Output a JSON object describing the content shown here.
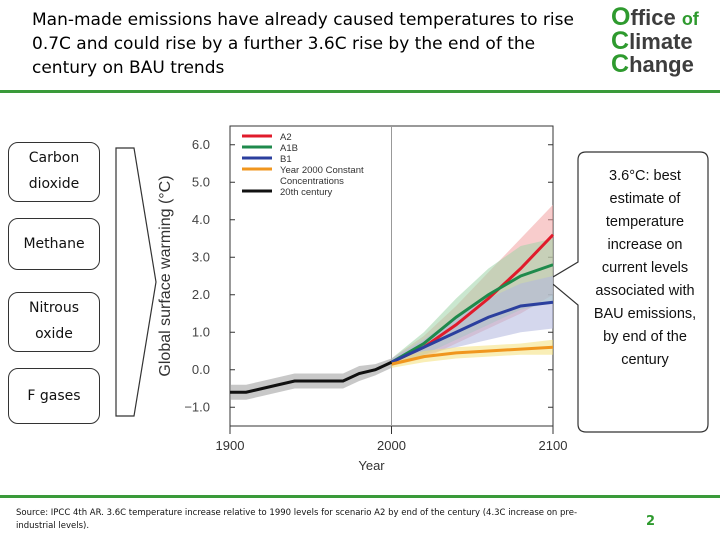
{
  "slide": {
    "title": "Man-made emissions have already caused temperatures to rise 0.7C and could rise by a further 3.6C rise by the end of the century on BAU trends",
    "logo": [
      "Office of",
      "Climate",
      "Change"
    ],
    "page_number": "2",
    "source_note": "Source: IPCC 4th AR. 3.6C temperature increase relative to 1990 levels for scenario A2 by end of the century (4.3C increase on pre-industrial levels).",
    "gases": [
      "Carbon dioxide",
      "Methane",
      "Nitrous oxide",
      "F gases"
    ],
    "callout": "3.6°C: best estimate of temperature increase on current levels associated with BAU emissions, by end of the century",
    "colors": {
      "green": "#2e9a2e",
      "logo_grey": "#3d3d3d"
    }
  },
  "chart_data": {
    "type": "line",
    "title": "",
    "xlabel": "Year",
    "ylabel": "Global surface warming (°C)",
    "xlim": [
      1900,
      2100
    ],
    "ylim": [
      -1.5,
      6.5
    ],
    "xticks": [
      1900,
      2000,
      2100
    ],
    "yticks": [
      6.0,
      5.0,
      4.0,
      3.0,
      2.0,
      1.0,
      0.0,
      -1.0
    ],
    "ytick_labels": [
      "6.0",
      "5.0",
      "4.0",
      "3.0",
      "2.0",
      "1.0",
      "0.0",
      "−1.0"
    ],
    "vline_x": 2000,
    "series": [
      {
        "name": "A2",
        "color": "#e01b2b",
        "band_color": "#f2a3a3",
        "x": [
          2000,
          2020,
          2040,
          2060,
          2080,
          2100
        ],
        "values": [
          0.2,
          0.6,
          1.2,
          1.9,
          2.7,
          3.6
        ],
        "band_low": [
          0.1,
          0.3,
          0.7,
          1.1,
          1.5,
          2.0
        ],
        "band_high": [
          0.3,
          0.9,
          1.7,
          2.6,
          3.5,
          4.4
        ]
      },
      {
        "name": "A1B",
        "color": "#1f8a4c",
        "band_color": "#9fd4a8",
        "x": [
          2000,
          2020,
          2040,
          2060,
          2080,
          2100
        ],
        "values": [
          0.2,
          0.7,
          1.4,
          2.0,
          2.5,
          2.8
        ],
        "band_low": [
          0.1,
          0.4,
          0.8,
          1.2,
          1.6,
          1.8
        ],
        "band_high": [
          0.3,
          1.0,
          1.9,
          2.7,
          3.3,
          3.5
        ]
      },
      {
        "name": "B1",
        "color": "#2b3f9e",
        "band_color": "#b0b6df",
        "x": [
          2000,
          2020,
          2040,
          2060,
          2080,
          2100
        ],
        "values": [
          0.2,
          0.6,
          1.0,
          1.4,
          1.7,
          1.8
        ],
        "band_low": [
          0.1,
          0.4,
          0.6,
          0.8,
          1.0,
          1.1
        ],
        "band_high": [
          0.3,
          0.8,
          1.4,
          1.9,
          2.3,
          2.5
        ]
      },
      {
        "name": "Year 2000 Constant Concentrations",
        "color": "#f0961e",
        "band_color": "#f4e07a",
        "x": [
          2000,
          2020,
          2040,
          2060,
          2080,
          2100
        ],
        "values": [
          0.15,
          0.35,
          0.45,
          0.5,
          0.55,
          0.6
        ],
        "band_low": [
          0.05,
          0.2,
          0.3,
          0.35,
          0.4,
          0.4
        ],
        "band_high": [
          0.25,
          0.5,
          0.6,
          0.65,
          0.7,
          0.8
        ]
      },
      {
        "name": "20th century",
        "color": "#111111",
        "band_color": "#9a9a9a",
        "x": [
          1900,
          1910,
          1920,
          1930,
          1940,
          1950,
          1960,
          1970,
          1980,
          1990,
          2000
        ],
        "values": [
          -0.6,
          -0.6,
          -0.5,
          -0.4,
          -0.3,
          -0.3,
          -0.3,
          -0.3,
          -0.1,
          0.0,
          0.2
        ],
        "band_low": [
          -0.8,
          -0.8,
          -0.7,
          -0.6,
          -0.5,
          -0.5,
          -0.5,
          -0.5,
          -0.3,
          -0.15,
          0.05
        ],
        "band_high": [
          -0.4,
          -0.4,
          -0.3,
          -0.2,
          -0.1,
          -0.1,
          -0.1,
          -0.1,
          0.1,
          0.15,
          0.3
        ]
      }
    ],
    "legend_position": "top-left"
  }
}
